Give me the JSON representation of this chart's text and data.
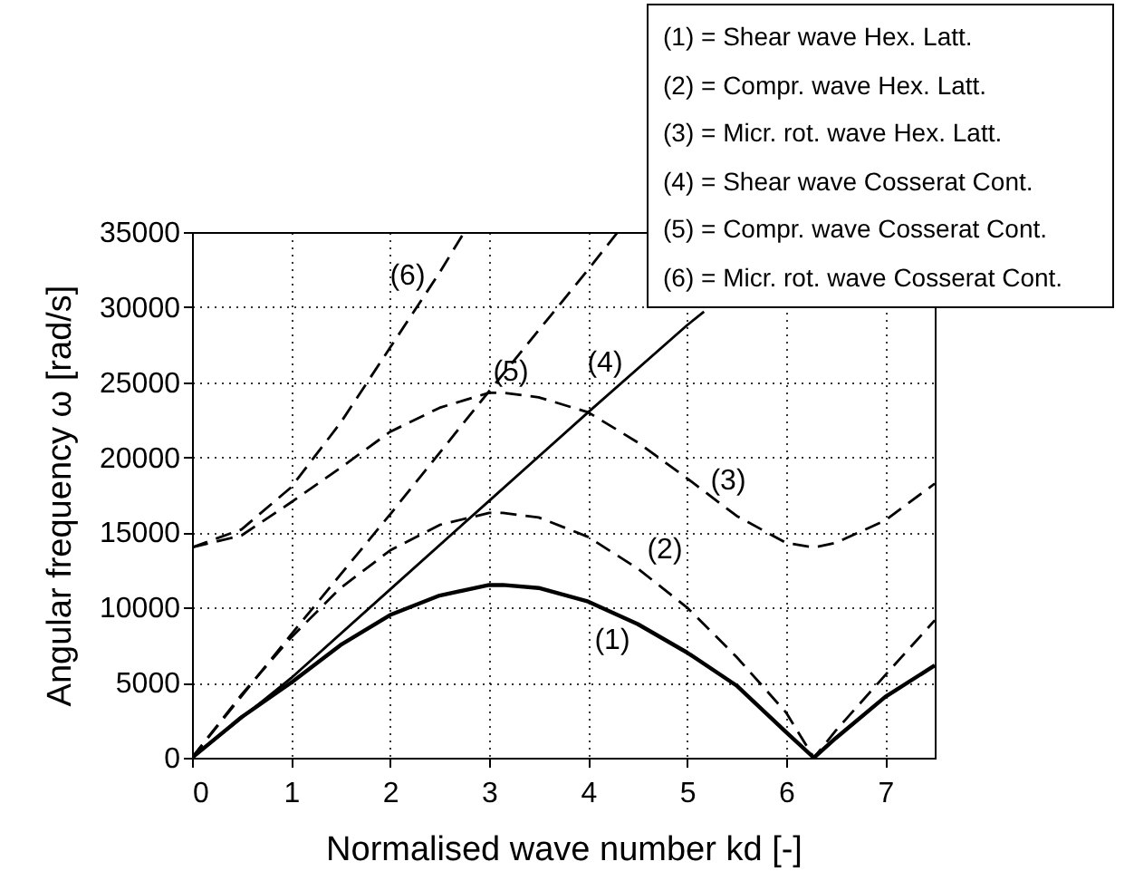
{
  "chart_data": {
    "type": "line",
    "xlabel": "Normalised wave number  kd  [-]",
    "ylabel": "Angular frequency  ω  [rad/s]",
    "xlim": [
      0,
      7.5
    ],
    "xticks": [
      0,
      1,
      2,
      3,
      4,
      5,
      6,
      7
    ],
    "ylim": [
      0,
      35000
    ],
    "yticks": [
      0,
      5000,
      10000,
      15000,
      20000,
      25000,
      30000,
      35000
    ],
    "grid": true,
    "marker": "none",
    "series": [
      {
        "name": "(1)",
        "color": "#000000",
        "line_style": "solid",
        "x": [
          0,
          0.5,
          1,
          1.5,
          2,
          2.5,
          3,
          3.14,
          3.5,
          4,
          4.5,
          5,
          5.5,
          6,
          6.28,
          6.5,
          7,
          7.5
        ],
        "values": [
          0,
          2700,
          5000,
          7500,
          9500,
          10800,
          11500,
          11500,
          11300,
          10400,
          8900,
          7000,
          4800,
          1700,
          0,
          1300,
          4050,
          6150
        ]
      },
      {
        "name": "(2)",
        "color": "#000000",
        "line_style": "dashed",
        "x": [
          0,
          0.5,
          1,
          1.5,
          2,
          2.5,
          3,
          3.14,
          3.5,
          4,
          4.5,
          5,
          5.5,
          6,
          6.28,
          6.5,
          7,
          7.5
        ],
        "values": [
          0,
          4200,
          8000,
          11300,
          13800,
          15500,
          16300,
          16300,
          16000,
          14700,
          12600,
          10000,
          6700,
          3000,
          0,
          1800,
          5500,
          9150
        ]
      },
      {
        "name": "(3)",
        "color": "#000000",
        "line_style": "dashed",
        "x": [
          0,
          0.5,
          1,
          1.5,
          2,
          2.5,
          3,
          3.14,
          3.5,
          4,
          4.5,
          5,
          5.5,
          6,
          6.28,
          6.5,
          7,
          7.5
        ],
        "values": [
          14000,
          14800,
          17000,
          19300,
          21700,
          23300,
          24300,
          24300,
          24000,
          23000,
          21000,
          18600,
          16100,
          14300,
          14000,
          14300,
          15800,
          18250
        ]
      },
      {
        "name": "(4)",
        "color": "#000000",
        "line_style": "solid",
        "x": [
          0,
          1,
          2,
          3,
          4,
          5,
          5.17
        ],
        "values": [
          0,
          5300,
          11200,
          17100,
          23000,
          28800,
          29700
        ]
      },
      {
        "name": "(5)",
        "color": "#000000",
        "line_style": "dashed",
        "x": [
          0,
          1,
          2,
          3,
          4,
          4.3
        ],
        "values": [
          0,
          8200,
          16200,
          24400,
          32500,
          35000
        ]
      },
      {
        "name": "(6)",
        "color": "#000000",
        "line_style": "dashed",
        "x": [
          0,
          0.5,
          1,
          1.5,
          2,
          2.5,
          2.75
        ],
        "values": [
          14000,
          15200,
          18000,
          22300,
          27300,
          32300,
          35000
        ]
      }
    ],
    "annotations": [
      "(1) = Shear wave Hex. Latt.",
      "(2) = Compr. wave Hex. Latt.",
      "(3) = Micr. rot. wave Hex. Latt.",
      "(4) = Shear wave Cosserat Cont.",
      "(5) = Compr. wave Cosserat Cont.",
      "(6) = Micr. rot. wave Cosserat Cont."
    ]
  }
}
